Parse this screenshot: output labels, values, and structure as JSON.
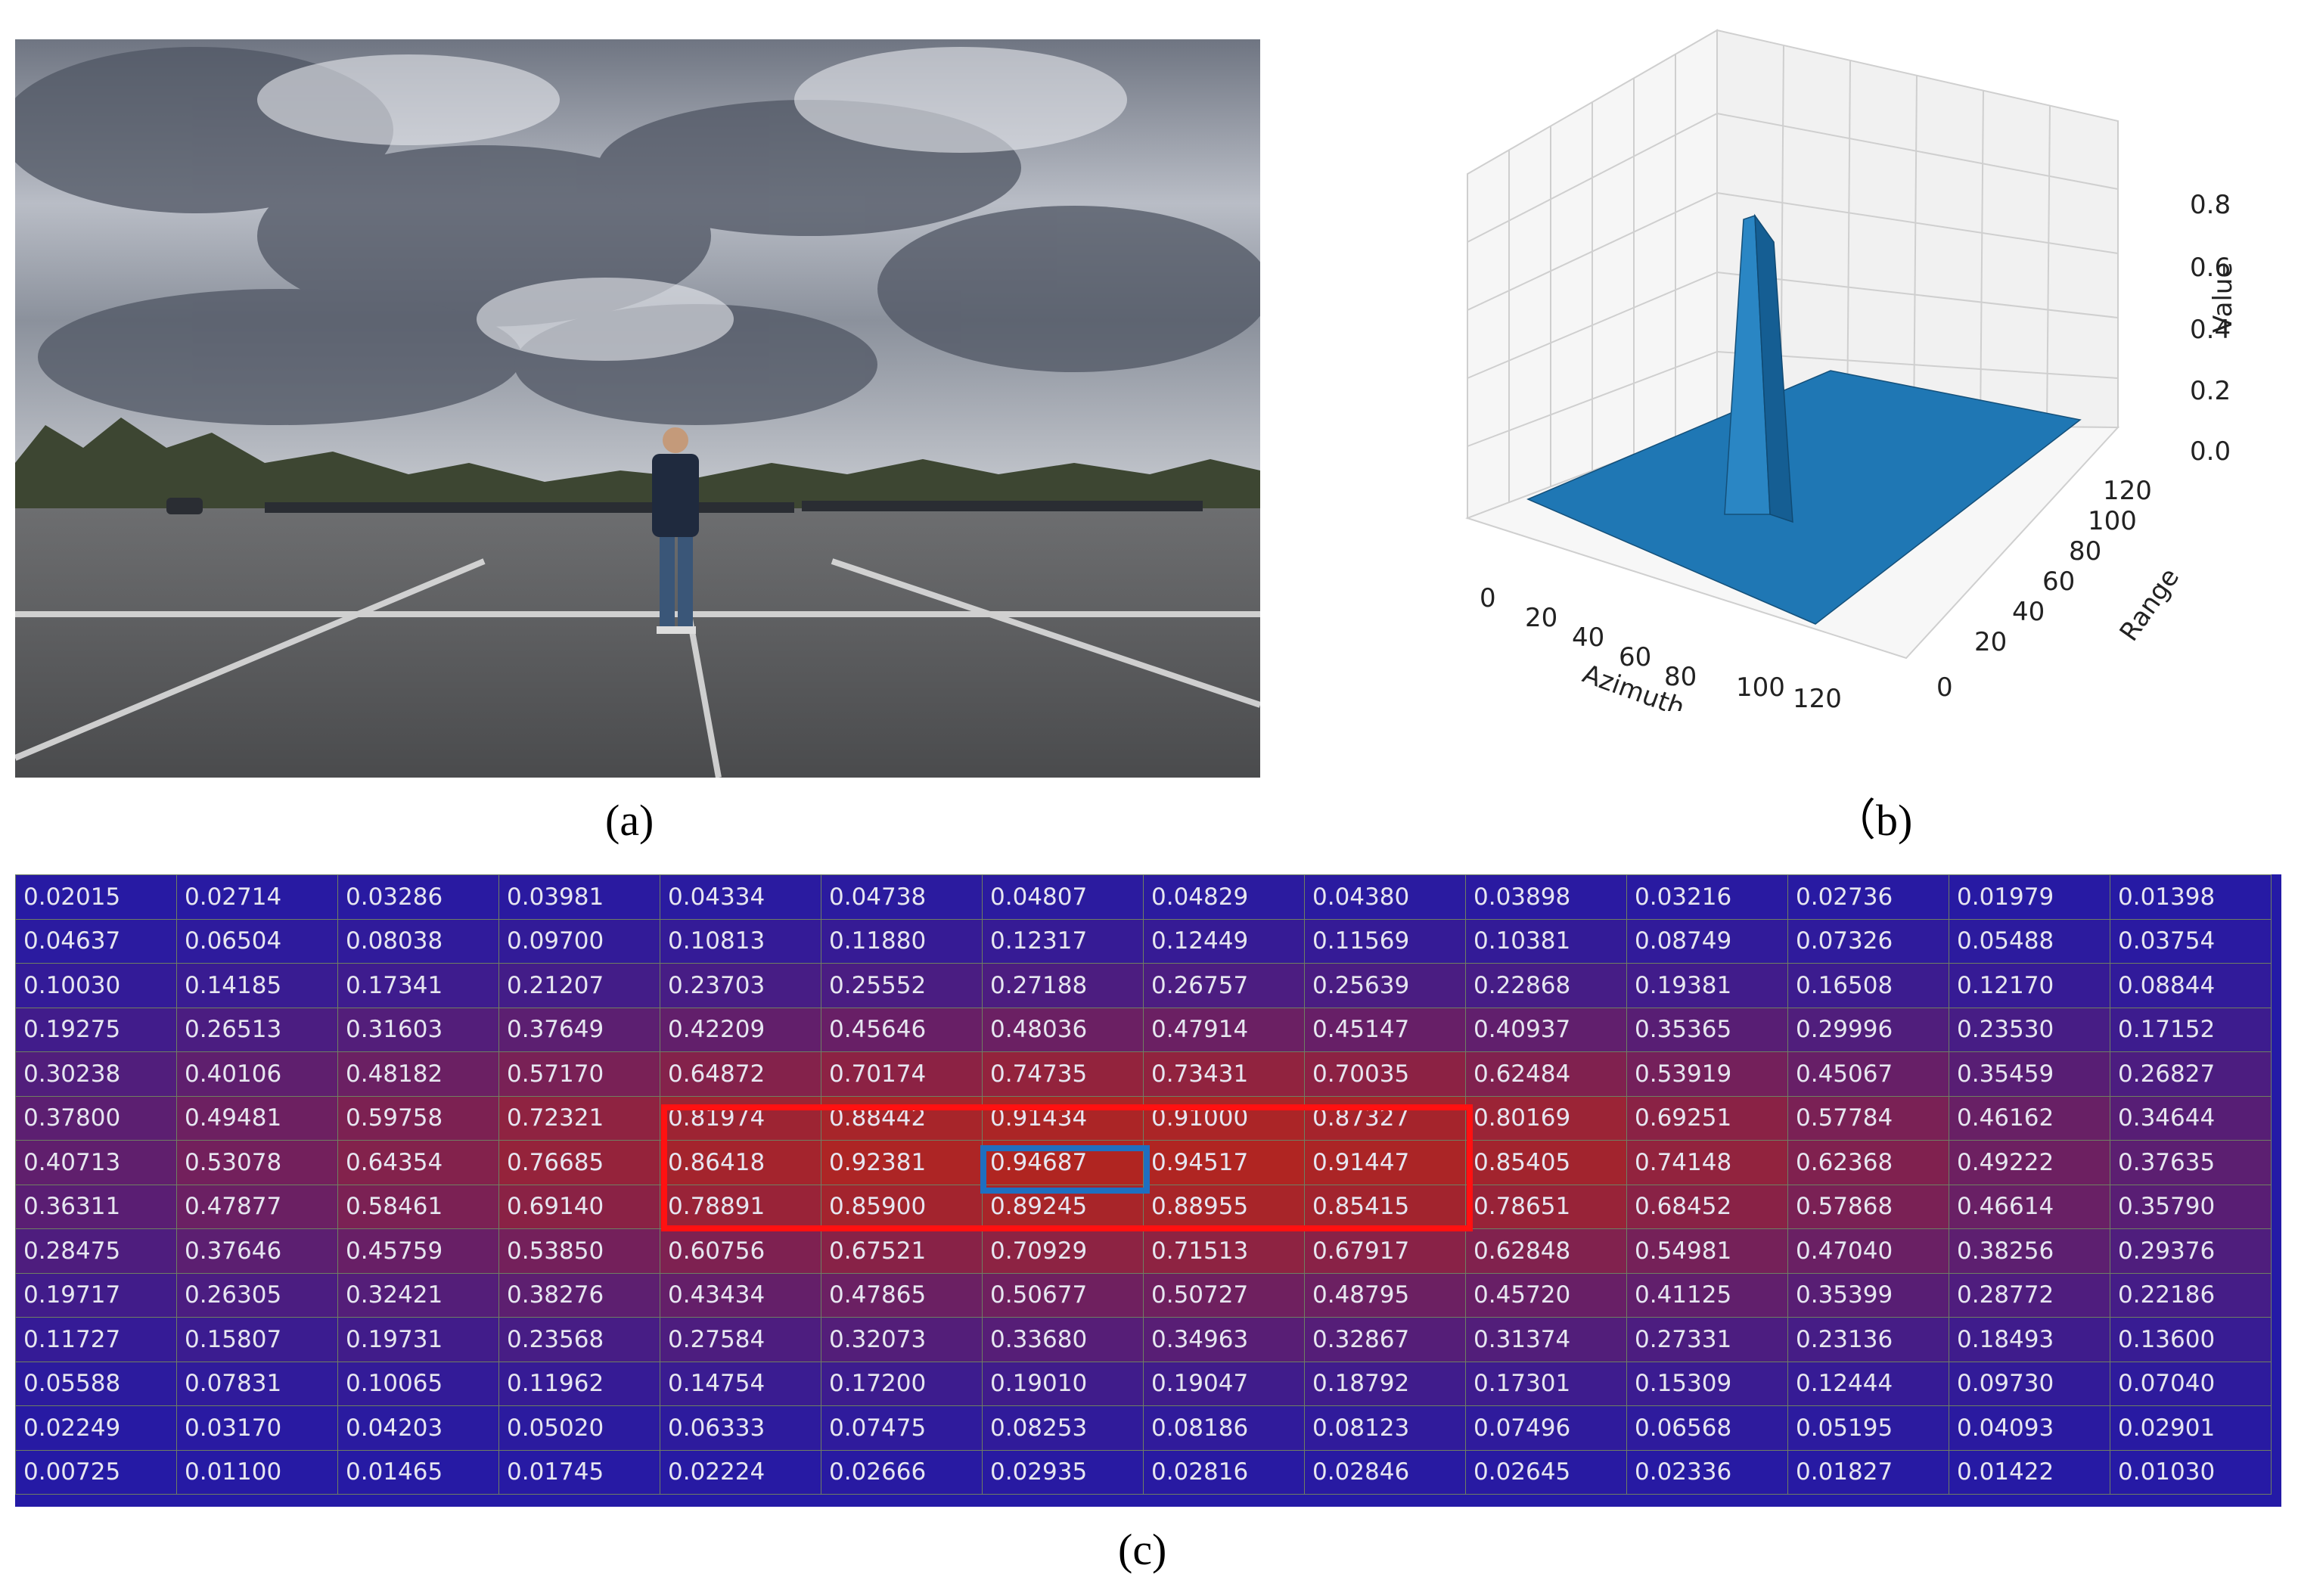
{
  "captions": {
    "a": "(a)",
    "b": "（b)",
    "c": "(c)"
  },
  "plot3d": {
    "ylabel_value": "Value",
    "xlabel": "Azimuth",
    "ylabel": "Range",
    "z_ticks": [
      "0.0",
      "0.2",
      "0.4",
      "0.6",
      "0.8"
    ],
    "x_ticks": [
      "0",
      "20",
      "40",
      "60",
      "80",
      "100",
      "120"
    ],
    "y_ticks": [
      "0",
      "20",
      "40",
      "60",
      "80",
      "100",
      "120"
    ],
    "surface_color": "#1f77b4"
  },
  "chart_data": {
    "type": "heatmap",
    "title": "",
    "xlabel": "",
    "ylabel": "",
    "highlight_colors": {
      "region": "#ff1111",
      "peak": "#1f6fc0"
    },
    "rows": [
      [
        "0.02015",
        "0.02714",
        "0.03286",
        "0.03981",
        "0.04334",
        "0.04738",
        "0.04807",
        "0.04829",
        "0.04380",
        "0.03898",
        "0.03216",
        "0.02736",
        "0.01979",
        "0.01398"
      ],
      [
        "0.04637",
        "0.06504",
        "0.08038",
        "0.09700",
        "0.10813",
        "0.11880",
        "0.12317",
        "0.12449",
        "0.11569",
        "0.10381",
        "0.08749",
        "0.07326",
        "0.05488",
        "0.03754"
      ],
      [
        "0.10030",
        "0.14185",
        "0.17341",
        "0.21207",
        "0.23703",
        "0.25552",
        "0.27188",
        "0.26757",
        "0.25639",
        "0.22868",
        "0.19381",
        "0.16508",
        "0.12170",
        "0.08844"
      ],
      [
        "0.19275",
        "0.26513",
        "0.31603",
        "0.37649",
        "0.42209",
        "0.45646",
        "0.48036",
        "0.47914",
        "0.45147",
        "0.40937",
        "0.35365",
        "0.29996",
        "0.23530",
        "0.17152"
      ],
      [
        "0.30238",
        "0.40106",
        "0.48182",
        "0.57170",
        "0.64872",
        "0.70174",
        "0.74735",
        "0.73431",
        "0.70035",
        "0.62484",
        "0.53919",
        "0.45067",
        "0.35459",
        "0.26827"
      ],
      [
        "0.37800",
        "0.49481",
        "0.59758",
        "0.72321",
        "0.81974",
        "0.88442",
        "0.91434",
        "0.91000",
        "0.87327",
        "0.80169",
        "0.69251",
        "0.57784",
        "0.46162",
        "0.34644"
      ],
      [
        "0.40713",
        "0.53078",
        "0.64354",
        "0.76685",
        "0.86418",
        "0.92381",
        "0.94687",
        "0.94517",
        "0.91447",
        "0.85405",
        "0.74148",
        "0.62368",
        "0.49222",
        "0.37635"
      ],
      [
        "0.36311",
        "0.47877",
        "0.58461",
        "0.69140",
        "0.78891",
        "0.85900",
        "0.89245",
        "0.88955",
        "0.85415",
        "0.78651",
        "0.68452",
        "0.57868",
        "0.46614",
        "0.35790"
      ],
      [
        "0.28475",
        "0.37646",
        "0.45759",
        "0.53850",
        "0.60756",
        "0.67521",
        "0.70929",
        "0.71513",
        "0.67917",
        "0.62848",
        "0.54981",
        "0.47040",
        "0.38256",
        "0.29376"
      ],
      [
        "0.19717",
        "0.26305",
        "0.32421",
        "0.38276",
        "0.43434",
        "0.47865",
        "0.50677",
        "0.50727",
        "0.48795",
        "0.45720",
        "0.41125",
        "0.35399",
        "0.28772",
        "0.22186"
      ],
      [
        "0.11727",
        "0.15807",
        "0.19731",
        "0.23568",
        "0.27584",
        "0.32073",
        "0.33680",
        "0.34963",
        "0.32867",
        "0.31374",
        "0.27331",
        "0.23136",
        "0.18493",
        "0.13600"
      ],
      [
        "0.05588",
        "0.07831",
        "0.10065",
        "0.11962",
        "0.14754",
        "0.17200",
        "0.19010",
        "0.19047",
        "0.18792",
        "0.17301",
        "0.15309",
        "0.12444",
        "0.09730",
        "0.07040"
      ],
      [
        "0.02249",
        "0.03170",
        "0.04203",
        "0.05020",
        "0.06333",
        "0.07475",
        "0.08253",
        "0.08186",
        "0.08123",
        "0.07496",
        "0.06568",
        "0.05195",
        "0.04093",
        "0.02901"
      ],
      [
        "0.00725",
        "0.01100",
        "0.01465",
        "0.01745",
        "0.02224",
        "0.02666",
        "0.02935",
        "0.02816",
        "0.02846",
        "0.02645",
        "0.02336",
        "0.01827",
        "0.01422",
        "0.01030"
      ]
    ]
  }
}
